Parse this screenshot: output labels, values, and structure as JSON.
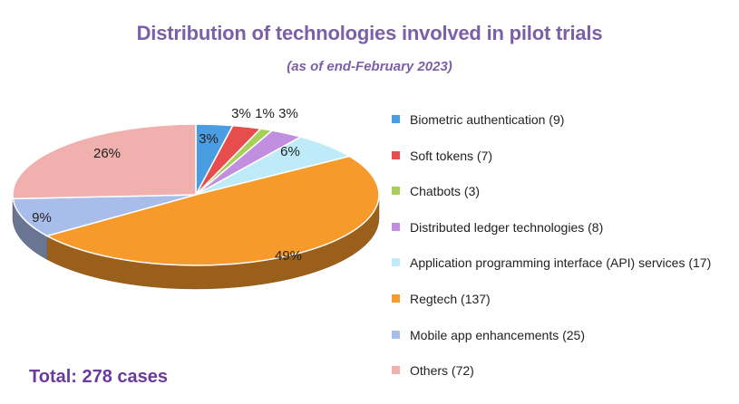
{
  "title": "Distribution of technologies involved in pilot trials",
  "subtitle": "(as of end-February 2023)",
  "total_label": "Total: 278 cases",
  "chart_data": {
    "type": "pie",
    "title": "Distribution of technologies involved in pilot trials",
    "subtitle": "(as of end-February 2023)",
    "style": "3d",
    "legend_position": "right",
    "slices": [
      {
        "label": "Biometric authentication (9)",
        "name": "Biometric authentication",
        "count": 9,
        "percent_label": "3%",
        "color": "#4a9de0"
      },
      {
        "label": "Soft tokens (7)",
        "name": "Soft tokens",
        "count": 7,
        "percent_label": "3%",
        "color": "#e84d4d"
      },
      {
        "label": "Chatbots (3)",
        "name": "Chatbots",
        "count": 3,
        "percent_label": "1%",
        "color": "#a6d05a"
      },
      {
        "label": "Distributed ledger technologies (8)",
        "name": "Distributed ledger technologies",
        "count": 8,
        "percent_label": "3%",
        "color": "#c28ee0"
      },
      {
        "label": "Application programming interface (API) services (17)",
        "name": "Application programming interface (API) services",
        "count": 17,
        "percent_label": "6%",
        "color": "#bfeaf8"
      },
      {
        "label": "Regtech (137)",
        "name": "Regtech",
        "count": 137,
        "percent_label": "49%",
        "color": "#f79a2c"
      },
      {
        "label": "Mobile app enhancements (25)",
        "name": "Mobile app enhancements",
        "count": 25,
        "percent_label": "9%",
        "color": "#a9bdeb"
      },
      {
        "label": "Others (72)",
        "name": "Others",
        "count": 72,
        "percent_label": "26%",
        "color": "#efb0ae"
      }
    ],
    "total": 278
  }
}
